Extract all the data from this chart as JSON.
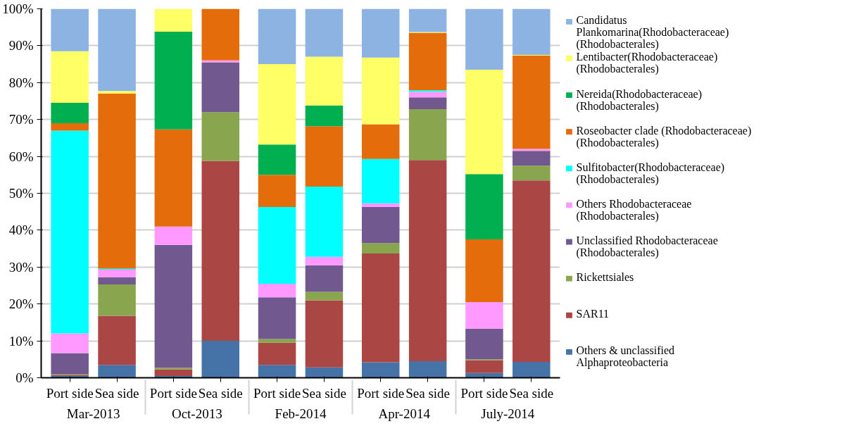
{
  "chart_data": {
    "type": "bar",
    "stacked": true,
    "categories": [
      "Port side",
      "Sea side",
      "Port side",
      "Sea side",
      "Port side",
      "Sea side",
      "Port side",
      "Sea side",
      "Port side",
      "Sea side"
    ],
    "annotations": [
      "Mar-2013",
      "Oct-2013",
      "Feb-2014",
      "Apr-2014",
      "July-2014"
    ],
    "ylim": [
      0,
      100
    ],
    "yticks": [
      {
        "value": 0,
        "label": "0%"
      },
      {
        "value": 10,
        "label": "10%"
      },
      {
        "value": 20,
        "label": "20%"
      },
      {
        "value": 30,
        "label": "30%"
      },
      {
        "value": 40,
        "label": "40%"
      },
      {
        "value": 50,
        "label": "50%"
      },
      {
        "value": 60,
        "label": "60%"
      },
      {
        "value": 70,
        "label": "70%"
      },
      {
        "value": 80,
        "label": "80%"
      },
      {
        "value": 90,
        "label": "90%"
      },
      {
        "value": 100,
        "label": "100%"
      }
    ],
    "grid": "y",
    "legend": "right",
    "series": [
      {
        "name": "Others & unclassified Alphaproteobacteria",
        "color": "#4572a7",
        "values": [
          0.5,
          3.5,
          0.5,
          10,
          3.5,
          2.8,
          4.2,
          4.5,
          1.3,
          4.3
        ]
      },
      {
        "name": "SAR11",
        "color": "#aa4643",
        "values": [
          0.2,
          13.3,
          1.8,
          48.8,
          6,
          18.2,
          29.5,
          54.5,
          3.4,
          49.2
        ]
      },
      {
        "name": "Rickettsiales",
        "color": "#89a54e",
        "values": [
          0.2,
          8.5,
          0.4,
          13.2,
          1,
          2.3,
          2.8,
          13.8,
          0.3,
          4
        ]
      },
      {
        "name": "Unclassified Rhodobacteraceae (Rhodobacterales)",
        "color": "#71588f",
        "values": [
          5.8,
          2,
          33.3,
          13.5,
          11.3,
          7.2,
          9.8,
          3.2,
          8.3,
          4
        ]
      },
      {
        "name": "Others Rhodobacteraceae (Rhodobacterales)",
        "color": "#ff99ff",
        "values": [
          5.3,
          2,
          5,
          0.5,
          3.7,
          2.3,
          1,
          1.5,
          7.2,
          0.5
        ]
      },
      {
        "name": "Sulfitobacter(Rhodobacteraceae) (Rhodobacterales)",
        "color": "#00ffff",
        "values": [
          55,
          0.3,
          0,
          0,
          20.8,
          19,
          12,
          0.4,
          0,
          0
        ]
      },
      {
        "name": "Roseobacter clade (Rhodobacteraceae)(Rhodobacterales)",
        "color": "#e46c0a",
        "values": [
          2,
          47.4,
          26.3,
          14,
          8.7,
          16.4,
          9.4,
          15.6,
          17,
          25.3
        ]
      },
      {
        "name": "Nereida(Rhodobacteraceae) (Rhodobacterales)",
        "color": "#00b050",
        "values": [
          5.5,
          0,
          26.5,
          0,
          8.2,
          5.6,
          0,
          0,
          17.7,
          0
        ]
      },
      {
        "name": "Lentibacter(Rhodobacteraceae) (Rhodobacterales)",
        "color": "#ffff66",
        "values": [
          14,
          0.7,
          6.2,
          0,
          21.8,
          13.2,
          18.1,
          0.2,
          28.3,
          0.2
        ]
      },
      {
        "name": "Candidatus Plankomarina(Rhodobacteraceae)(Rhodobacterales)",
        "color": "#8db3e2",
        "values": [
          11.5,
          22.3,
          0,
          0,
          15,
          13,
          13.2,
          6.3,
          16.5,
          12.5
        ]
      }
    ]
  }
}
